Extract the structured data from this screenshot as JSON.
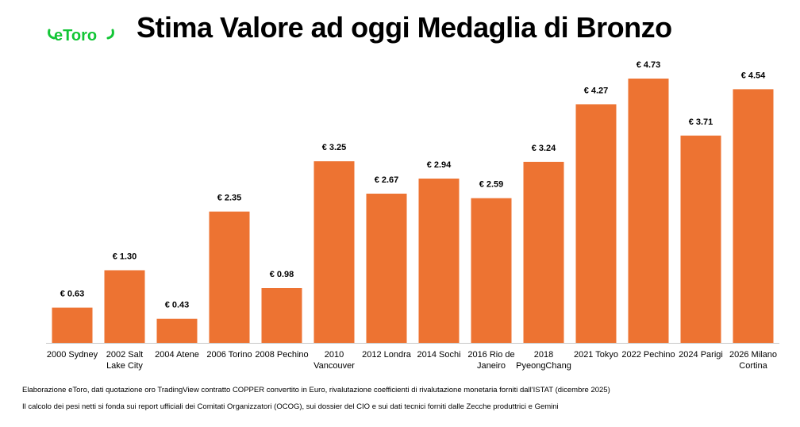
{
  "header": {
    "title": "Stima Valore ad oggi Medaglia di Bronzo",
    "logo_text": "eToro"
  },
  "colors": {
    "bar": "#ED7332",
    "logo": "#13C636",
    "axis": "#C8C8C8",
    "text": "#000000"
  },
  "chart_data": {
    "type": "bar",
    "title": "Stima Valore ad oggi Medaglia di Bronzo",
    "xlabel": "",
    "ylabel": "",
    "ylim": [
      0,
      5
    ],
    "grid": false,
    "categories": [
      [
        "2000 Sydney"
      ],
      [
        "2002 Salt",
        "Lake City"
      ],
      [
        "2004 Atene"
      ],
      [
        "2006 Torino"
      ],
      [
        "2008 Pechino"
      ],
      [
        "2010",
        "Vancouver"
      ],
      [
        "2012 Londra"
      ],
      [
        "2014 Sochi"
      ],
      [
        "2016 Rio de",
        "Janeiro"
      ],
      [
        "2018",
        "PyeongChang"
      ],
      [
        "2021 Tokyo"
      ],
      [
        "2022 Pechino"
      ],
      [
        "2024 Parigi"
      ],
      [
        "2026 Milano",
        "Cortina"
      ]
    ],
    "values": [
      0.63,
      1.3,
      0.43,
      2.35,
      0.98,
      3.25,
      2.67,
      2.94,
      2.59,
      3.24,
      4.27,
      4.73,
      3.71,
      4.54
    ],
    "value_labels": [
      "€ 0.63",
      "€ 1.30",
      "€ 0.43",
      "€ 2.35",
      "€ 0.98",
      "€ 3.25",
      "€ 2.67",
      "€ 2.94",
      "€ 2.59",
      "€ 3.24",
      "€ 4.27",
      "€ 4.73",
      "€ 3.71",
      "€ 4.54"
    ]
  },
  "notes": {
    "source": "Elaborazione eToro, dati quotazione oro TradingView contratto COPPER convertito in Euro, rivalutazione coefficienti di rivalutazione monetaria forniti dall'ISTAT (dicembre 2025)",
    "method": "Il calcolo dei pesi netti si fonda sui report ufficiali dei Comitati Organizzatori (OCOG), sui dossier del CIO e sui dati tecnici forniti dalle Zecche produttrici e Gemini"
  }
}
